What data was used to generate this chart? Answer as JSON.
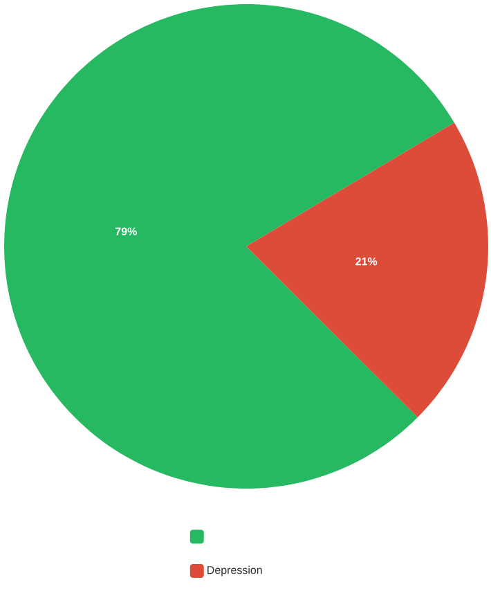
{
  "chart_data": {
    "type": "pie",
    "categories": [
      null,
      "Depression"
    ],
    "values": [
      79,
      21
    ],
    "colors": [
      "#27b862",
      "#dd4b39"
    ],
    "value_labels": [
      "79%",
      "21%"
    ],
    "legend": "bottom"
  }
}
